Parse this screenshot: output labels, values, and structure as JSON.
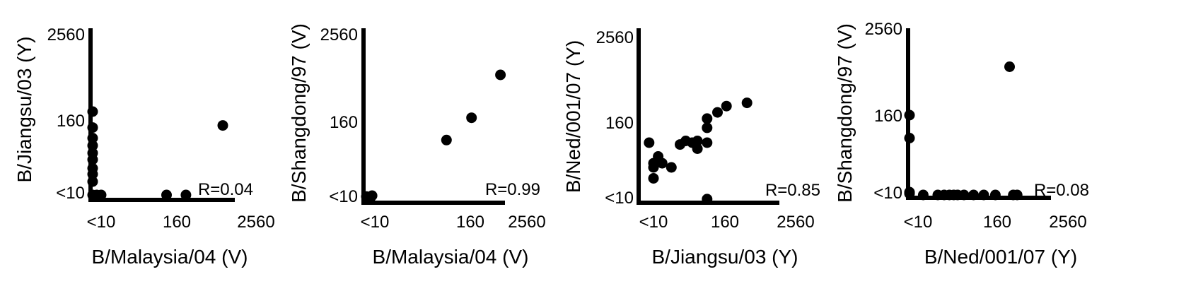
{
  "chart_data": [
    {
      "type": "scatter",
      "xlabel": "B/Malaysia/04 (V)",
      "ylabel": "B/Jiangsu/03 (Y)",
      "x_ticks": [
        "<10",
        "160",
        "2560"
      ],
      "y_ticks": [
        "<10",
        "160",
        "2560"
      ],
      "log_scale": true,
      "xlim": [
        5,
        2560
      ],
      "ylim": [
        5,
        2560
      ],
      "annotation": "R=0.04",
      "points": [
        {
          "x": 5,
          "y": 5
        },
        {
          "x": 5,
          "y": 15
        },
        {
          "x": 5,
          "y": 20
        },
        {
          "x": 5,
          "y": 25
        },
        {
          "x": 5,
          "y": 35
        },
        {
          "x": 5,
          "y": 45
        },
        {
          "x": 5,
          "y": 60
        },
        {
          "x": 5,
          "y": 80
        },
        {
          "x": 5,
          "y": 120
        },
        {
          "x": 5,
          "y": 210
        },
        {
          "x": 7,
          "y": 5
        },
        {
          "x": 10,
          "y": 5
        },
        {
          "x": 110,
          "y": 5
        },
        {
          "x": 220,
          "y": 5
        },
        {
          "x": 800,
          "y": 130
        }
      ]
    },
    {
      "type": "scatter",
      "xlabel": "B/Malaysia/04 (V)",
      "ylabel": "B/Shangdong/97 (V)",
      "x_ticks": [
        "<10",
        "160",
        "2560"
      ],
      "y_ticks": [
        "<10",
        "160",
        "2560"
      ],
      "log_scale": true,
      "xlim": [
        5,
        2560
      ],
      "ylim": [
        5,
        2560
      ],
      "annotation": "R=0.99",
      "points": [
        {
          "x": 5,
          "y": 8
        },
        {
          "x": 7,
          "y": 6
        },
        {
          "x": 8,
          "y": 10
        },
        {
          "x": 80,
          "y": 80
        },
        {
          "x": 170,
          "y": 180
        },
        {
          "x": 700,
          "y": 700
        }
      ]
    },
    {
      "type": "scatter",
      "xlabel": "B/Jiangsu/03 (Y)",
      "ylabel": "B/Ned/001/07 (Y)",
      "x_ticks": [
        "<10",
        "160",
        "2560"
      ],
      "y_ticks": [
        "<10",
        "160",
        "2560"
      ],
      "log_scale": true,
      "xlim": [
        5,
        2560
      ],
      "ylim": [
        5,
        2560
      ],
      "annotation": "R=0.85",
      "points": [
        {
          "x": 7,
          "y": 75
        },
        {
          "x": 10,
          "y": 20
        },
        {
          "x": 10,
          "y": 30
        },
        {
          "x": 10,
          "y": 35
        },
        {
          "x": 12,
          "y": 45
        },
        {
          "x": 14,
          "y": 35
        },
        {
          "x": 20,
          "y": 30
        },
        {
          "x": 28,
          "y": 70
        },
        {
          "x": 35,
          "y": 80
        },
        {
          "x": 45,
          "y": 75
        },
        {
          "x": 55,
          "y": 80
        },
        {
          "x": 55,
          "y": 60
        },
        {
          "x": 80,
          "y": 75
        },
        {
          "x": 80,
          "y": 130
        },
        {
          "x": 80,
          "y": 180
        },
        {
          "x": 80,
          "y": 6
        },
        {
          "x": 120,
          "y": 220
        },
        {
          "x": 170,
          "y": 270
        },
        {
          "x": 380,
          "y": 300
        }
      ]
    },
    {
      "type": "scatter",
      "xlabel": "B/Ned/001/07 (Y)",
      "ylabel": "B/Shangdong/97 (V)",
      "x_ticks": [
        "<10",
        "160",
        "2560"
      ],
      "y_ticks": [
        "<10",
        "160",
        "2560"
      ],
      "log_scale": true,
      "xlim": [
        5,
        2560
      ],
      "ylim": [
        5,
        2560
      ],
      "annotation": "R=0.08",
      "points": [
        {
          "x": 5,
          "y": 160
        },
        {
          "x": 5,
          "y": 70
        },
        {
          "x": 5,
          "y": 10
        },
        {
          "x": 5,
          "y": 7
        },
        {
          "x": 12,
          "y": 5
        },
        {
          "x": 20,
          "y": 5
        },
        {
          "x": 25,
          "y": 5
        },
        {
          "x": 30,
          "y": 5
        },
        {
          "x": 35,
          "y": 5
        },
        {
          "x": 40,
          "y": 5
        },
        {
          "x": 50,
          "y": 5
        },
        {
          "x": 70,
          "y": 5
        },
        {
          "x": 100,
          "y": 5
        },
        {
          "x": 150,
          "y": 5
        },
        {
          "x": 300,
          "y": 5
        },
        {
          "x": 350,
          "y": 5
        },
        {
          "x": 260,
          "y": 750
        }
      ]
    }
  ]
}
